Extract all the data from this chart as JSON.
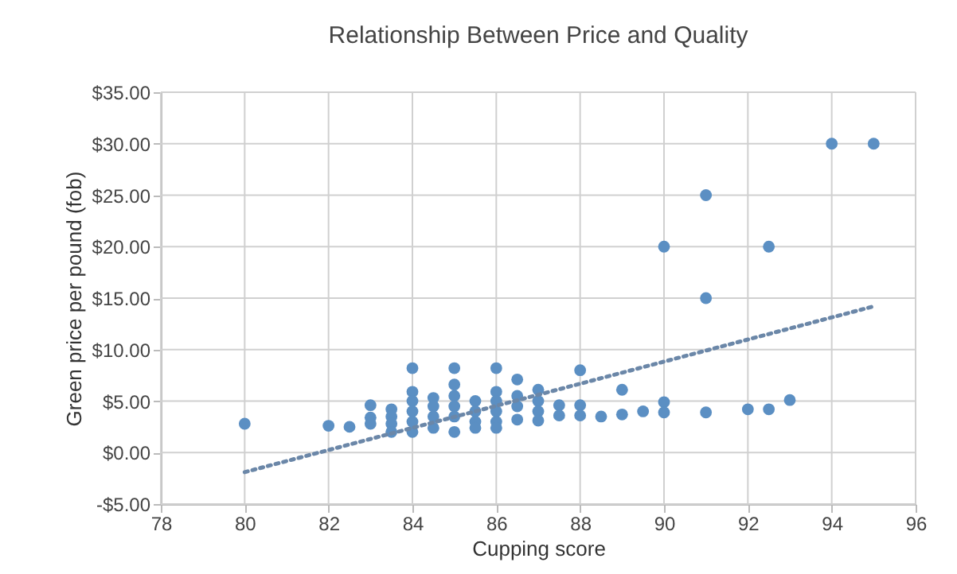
{
  "chart_data": {
    "type": "scatter",
    "title": "Relationship Between Price and Quality",
    "xlabel": "Cupping score",
    "ylabel": "Green price per pound (fob)",
    "xlim": [
      78,
      96
    ],
    "xticks": [
      78,
      80,
      82,
      84,
      86,
      88,
      90,
      92,
      94,
      96
    ],
    "ylim": [
      -5,
      35
    ],
    "yticks": [
      {
        "value": -5,
        "label": "-$5.00"
      },
      {
        "value": 0,
        "label": "$0.00"
      },
      {
        "value": 5,
        "label": "$5.00"
      },
      {
        "value": 10,
        "label": "$10.00"
      },
      {
        "value": 15,
        "label": "$15.00"
      },
      {
        "value": 20,
        "label": "$20.00"
      },
      {
        "value": 25,
        "label": "$25.00"
      },
      {
        "value": 30,
        "label": "$30.00"
      },
      {
        "value": 35,
        "label": "$35.00"
      }
    ],
    "grid": true,
    "marker": "circle",
    "series": [
      {
        "color": "#5b8fc3",
        "x": [
          80,
          82,
          82.5,
          83,
          83,
          83,
          83.5,
          83.5,
          83.5,
          83.5,
          84,
          84,
          84,
          84,
          84,
          84,
          84.5,
          84.5,
          84.5,
          84.5,
          85,
          85,
          85,
          85,
          85,
          85,
          85.5,
          85.5,
          85.5,
          85.5,
          86,
          86,
          86,
          86,
          86,
          86,
          86.5,
          86.5,
          86.5,
          86.5,
          87,
          87,
          87,
          87,
          87.5,
          87.5,
          88,
          88,
          88,
          88.5,
          89,
          89,
          89.5,
          90,
          90,
          90,
          91,
          91,
          91,
          92,
          92.5,
          92.5,
          93,
          94,
          95
        ],
        "values": [
          2.8,
          2.6,
          2.5,
          4.6,
          3.4,
          2.8,
          4.2,
          3.5,
          2.8,
          2.0,
          8.2,
          5.9,
          5.0,
          4.0,
          3.0,
          2.0,
          5.3,
          4.5,
          3.5,
          2.4,
          8.2,
          6.6,
          5.5,
          4.5,
          3.5,
          2.0,
          5.0,
          4.0,
          3.0,
          2.4,
          8.2,
          5.9,
          5.0,
          4.0,
          3.0,
          2.4,
          7.1,
          5.5,
          4.5,
          3.2,
          6.1,
          5.0,
          4.0,
          3.1,
          4.6,
          3.6,
          8.0,
          4.6,
          3.6,
          3.5,
          6.1,
          3.7,
          4.0,
          20.0,
          4.9,
          3.9,
          25.0,
          15.0,
          3.9,
          4.2,
          20.0,
          4.2,
          5.1,
          30.0,
          30.0
        ]
      },
      {
        "type": "line",
        "marker": "none",
        "color": "#6b87a8",
        "line_style": "dotted",
        "x": [
          80,
          95
        ],
        "values": [
          -1.9,
          14.2
        ]
      }
    ]
  }
}
